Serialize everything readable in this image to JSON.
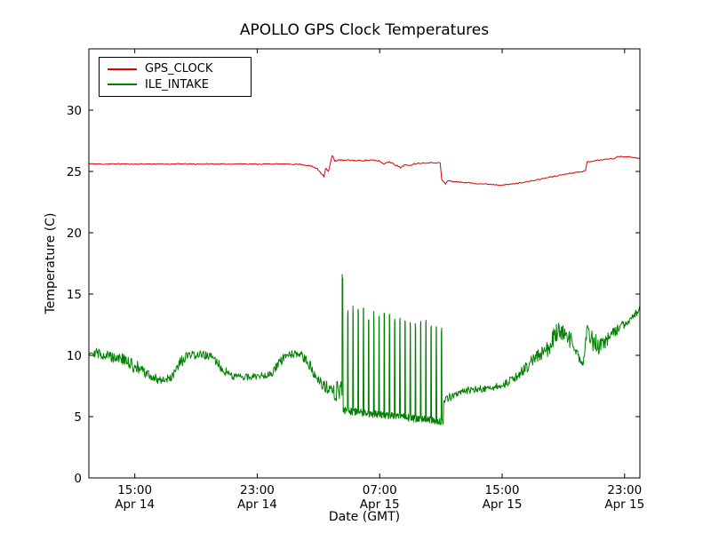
{
  "figure": {
    "background": "#ffffff",
    "frame_color": "#000000"
  },
  "chart_data": {
    "type": "line",
    "title": "APOLLO GPS Clock Temperatures",
    "xlabel": "Date (GMT)",
    "ylabel": "Temperature (C)",
    "x_description": "hours after 12:00 Apr 14 (GMT)",
    "x_range_hours": [
      0,
      36
    ],
    "ylim": [
      0,
      35
    ],
    "y_ticks": [
      0,
      5,
      10,
      15,
      20,
      25,
      30
    ],
    "x_ticks": [
      {
        "hour": 3,
        "time": "15:00",
        "date": "Apr 14"
      },
      {
        "hour": 11,
        "time": "23:00",
        "date": "Apr 14"
      },
      {
        "hour": 19,
        "time": "07:00",
        "date": "Apr 15"
      },
      {
        "hour": 27,
        "time": "15:00",
        "date": "Apr 15"
      },
      {
        "hour": 35,
        "time": "23:00",
        "date": "Apr 15"
      }
    ],
    "grid": false,
    "legend_position": "upper left",
    "series": [
      {
        "name": "GPS_CLOCK",
        "color": "#e00000",
        "noise": 0.04,
        "points": [
          [
            0,
            25.62
          ],
          [
            1,
            25.6
          ],
          [
            2,
            25.62
          ],
          [
            3,
            25.6
          ],
          [
            4,
            25.61
          ],
          [
            5,
            25.6
          ],
          [
            6,
            25.62
          ],
          [
            7,
            25.6
          ],
          [
            8,
            25.61
          ],
          [
            9,
            25.6
          ],
          [
            10,
            25.62
          ],
          [
            11,
            25.6
          ],
          [
            12,
            25.61
          ],
          [
            13,
            25.6
          ],
          [
            13.8,
            25.58
          ],
          [
            14.3,
            25.5,
            0.06
          ],
          [
            14.8,
            25.3,
            0.08
          ],
          [
            15.1,
            25.0,
            0.1
          ],
          [
            15.35,
            24.62,
            0.08
          ],
          [
            15.5,
            25.35,
            0.12
          ],
          [
            15.65,
            24.95,
            0.12
          ],
          [
            15.9,
            26.32,
            0.1
          ],
          [
            16.05,
            25.85,
            0.08
          ],
          [
            16.3,
            25.95,
            0.06
          ],
          [
            16.6,
            25.9,
            0.05
          ],
          [
            17,
            25.92,
            0.05
          ],
          [
            17.5,
            25.88,
            0.05
          ],
          [
            18,
            25.9,
            0.05
          ],
          [
            18.5,
            25.92,
            0.05
          ],
          [
            19,
            25.85,
            0.06
          ],
          [
            19.25,
            25.6,
            0.08
          ],
          [
            19.5,
            25.78,
            0.06
          ],
          [
            19.8,
            25.72,
            0.06
          ],
          [
            20.1,
            25.5,
            0.08
          ],
          [
            20.35,
            25.3,
            0.08
          ],
          [
            20.6,
            25.55,
            0.06
          ],
          [
            20.9,
            25.45,
            0.06
          ],
          [
            21.2,
            25.62,
            0.05
          ],
          [
            21.6,
            25.68,
            0.05
          ],
          [
            22,
            25.7
          ],
          [
            22.5,
            25.72
          ],
          [
            22.95,
            25.7
          ],
          [
            23.05,
            24.35,
            0.05
          ],
          [
            23.15,
            24.2,
            0.05
          ],
          [
            23.3,
            23.98,
            0.05
          ],
          [
            23.45,
            24.25,
            0.05
          ],
          [
            23.8,
            24.18
          ],
          [
            24.3,
            24.12
          ],
          [
            24.8,
            24.08
          ],
          [
            25.3,
            24.02
          ],
          [
            25.8,
            23.98
          ],
          [
            26.3,
            23.95
          ],
          [
            26.8,
            23.9
          ],
          [
            27.3,
            23.92
          ],
          [
            27.8,
            24.0
          ],
          [
            28.3,
            24.1
          ],
          [
            28.8,
            24.2
          ],
          [
            29.3,
            24.32
          ],
          [
            29.8,
            24.45
          ],
          [
            30.3,
            24.58
          ],
          [
            30.8,
            24.7
          ],
          [
            31.3,
            24.82
          ],
          [
            31.8,
            24.92
          ],
          [
            32.2,
            25.0
          ],
          [
            32.45,
            25.05
          ],
          [
            32.55,
            25.78,
            0.05
          ],
          [
            32.9,
            25.85,
            0.05
          ],
          [
            33.3,
            25.92
          ],
          [
            33.8,
            26.0
          ],
          [
            34.3,
            26.05
          ],
          [
            34.6,
            26.22
          ],
          [
            35,
            26.22
          ],
          [
            35.4,
            26.18
          ],
          [
            35.8,
            26.1
          ],
          [
            36,
            26.08
          ]
        ]
      },
      {
        "name": "ILE_INTAKE",
        "color": "#008000",
        "noise": 0.3,
        "points": [
          [
            0,
            10.35,
            0.35
          ],
          [
            0.5,
            10.2,
            0.4
          ],
          [
            1,
            10.05,
            0.45
          ],
          [
            1.5,
            9.9,
            0.5
          ],
          [
            2,
            9.85,
            0.55
          ],
          [
            2.5,
            9.4,
            0.6
          ],
          [
            3,
            9.1,
            0.6
          ],
          [
            3.5,
            8.7,
            0.5
          ],
          [
            4,
            8.3,
            0.45
          ],
          [
            4.5,
            8.05,
            0.35
          ],
          [
            5,
            8.0,
            0.3
          ],
          [
            5.5,
            8.3,
            0.4
          ],
          [
            6,
            9.4,
            0.5
          ],
          [
            6.4,
            9.9,
            0.4
          ],
          [
            7,
            10.05,
            0.35
          ],
          [
            7.6,
            10.0,
            0.35
          ],
          [
            8.1,
            9.85,
            0.35
          ],
          [
            8.5,
            9.2,
            0.4
          ],
          [
            9,
            8.6,
            0.35
          ],
          [
            9.5,
            8.3,
            0.3
          ],
          [
            10,
            8.2,
            0.28
          ],
          [
            10.5,
            8.25,
            0.28
          ],
          [
            11,
            8.3,
            0.28
          ],
          [
            11.5,
            8.4,
            0.3
          ],
          [
            12,
            8.6,
            0.35
          ],
          [
            12.4,
            9.3,
            0.35
          ],
          [
            12.8,
            9.9,
            0.35
          ],
          [
            13.3,
            10.1,
            0.3
          ],
          [
            13.9,
            9.95,
            0.35
          ],
          [
            14.3,
            9.4,
            0.45
          ],
          [
            14.7,
            8.7,
            0.55
          ],
          [
            15.1,
            8.0,
            0.6
          ],
          [
            15.5,
            7.3,
            0.65
          ],
          [
            15.9,
            6.9,
            0.7
          ],
          [
            16.2,
            7.0,
            0.85
          ],
          [
            16.5,
            7.6,
            0.95
          ],
          [
            23.25,
            6.2,
            0.45
          ],
          [
            23.6,
            6.6,
            0.35
          ],
          [
            24,
            6.9,
            0.3
          ],
          [
            24.5,
            7.1,
            0.3
          ],
          [
            25,
            7.2,
            0.3
          ],
          [
            25.5,
            7.25,
            0.3
          ],
          [
            26,
            7.3,
            0.3
          ],
          [
            26.5,
            7.4,
            0.3
          ],
          [
            27,
            7.6,
            0.32
          ],
          [
            27.5,
            7.9,
            0.35
          ],
          [
            28,
            8.3,
            0.4
          ],
          [
            28.5,
            8.9,
            0.45
          ],
          [
            29,
            9.6,
            0.5
          ],
          [
            29.5,
            10.1,
            0.6
          ],
          [
            30,
            10.5,
            0.75
          ],
          [
            30.4,
            11.6,
            0.9
          ],
          [
            30.8,
            11.9,
            0.9
          ],
          [
            31.2,
            11.7,
            0.8
          ],
          [
            31.6,
            11.0,
            0.6
          ],
          [
            32,
            9.7,
            0.45
          ],
          [
            32.3,
            9.3,
            0.3
          ],
          [
            32.5,
            11.9,
            0.7
          ],
          [
            32.9,
            11.3,
            0.9
          ],
          [
            33.3,
            10.7,
            0.6
          ],
          [
            33.7,
            11.0,
            0.55
          ],
          [
            34.1,
            11.6,
            0.5
          ],
          [
            34.5,
            12.1,
            0.45
          ],
          [
            35,
            12.6,
            0.4
          ],
          [
            35.4,
            13.0,
            0.35
          ],
          [
            35.8,
            13.5,
            0.3
          ],
          [
            36,
            13.8,
            0.25
          ]
        ],
        "spike_region": {
          "start": 16.55,
          "end": 23.15,
          "base_start": 5.5,
          "base_end": 4.6,
          "top_start": 14.2,
          "top_end": 12.6,
          "first_top": 16.7,
          "period": 0.34,
          "top_fraction": 0.14,
          "base_noise": 0.3
        }
      }
    ]
  }
}
